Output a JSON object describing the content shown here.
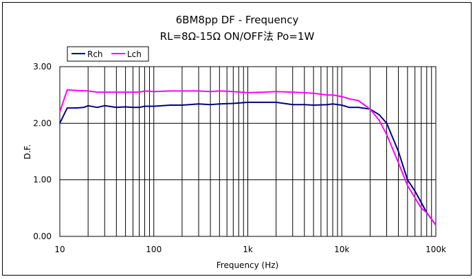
{
  "chart_data": {
    "type": "line",
    "title": "6BM8pp  DF - Frequency",
    "subtitle": "RL=8Ω-15Ω ON/OFF法  Po=1W",
    "xlabel": "Frequency (Hz)",
    "ylabel": "D.F.",
    "x_scale": "log",
    "xlim": [
      10,
      100000
    ],
    "ylim": [
      0,
      3
    ],
    "x_ticks": [
      10,
      100,
      1000,
      10000,
      100000
    ],
    "x_tick_labels": [
      "10",
      "100",
      "1k",
      "10k",
      "100k"
    ],
    "y_ticks": [
      0,
      1,
      2,
      3
    ],
    "y_tick_labels": [
      "0.00",
      "1.00",
      "2.00",
      "3.00"
    ],
    "grid": true,
    "legend_position": "top-left",
    "series": [
      {
        "name": "Rch",
        "color": "#000080",
        "x": [
          10,
          12,
          15,
          18,
          20,
          25,
          30,
          40,
          50,
          60,
          70,
          80,
          100,
          150,
          200,
          300,
          400,
          500,
          700,
          1000,
          1500,
          2000,
          3000,
          4000,
          5000,
          7000,
          8000,
          10000,
          12000,
          15000,
          20000,
          25000,
          30000,
          40000,
          50000,
          60000,
          70000,
          80000,
          100000
        ],
        "values": [
          2.0,
          2.27,
          2.27,
          2.28,
          2.31,
          2.28,
          2.31,
          2.28,
          2.29,
          2.28,
          2.28,
          2.3,
          2.3,
          2.32,
          2.32,
          2.34,
          2.33,
          2.34,
          2.35,
          2.37,
          2.37,
          2.37,
          2.33,
          2.33,
          2.32,
          2.33,
          2.34,
          2.32,
          2.28,
          2.28,
          2.25,
          2.15,
          2.0,
          1.5,
          1.0,
          0.8,
          0.6,
          0.42,
          0.2
        ]
      },
      {
        "name": "Lch",
        "color": "#ff00ff",
        "x": [
          10,
          12,
          15,
          20,
          25,
          30,
          50,
          70,
          80,
          100,
          150,
          200,
          300,
          400,
          500,
          700,
          1000,
          1500,
          2000,
          3000,
          4000,
          5000,
          7000,
          8000,
          10000,
          12000,
          15000,
          20000,
          25000,
          30000,
          40000,
          50000,
          60000,
          70000,
          80000,
          100000
        ],
        "values": [
          2.2,
          2.59,
          2.58,
          2.57,
          2.55,
          2.55,
          2.55,
          2.55,
          2.57,
          2.56,
          2.57,
          2.57,
          2.57,
          2.56,
          2.57,
          2.56,
          2.54,
          2.55,
          2.56,
          2.55,
          2.54,
          2.53,
          2.5,
          2.5,
          2.47,
          2.43,
          2.4,
          2.25,
          2.05,
          1.8,
          1.3,
          0.9,
          0.68,
          0.5,
          0.42,
          0.2
        ]
      }
    ]
  }
}
